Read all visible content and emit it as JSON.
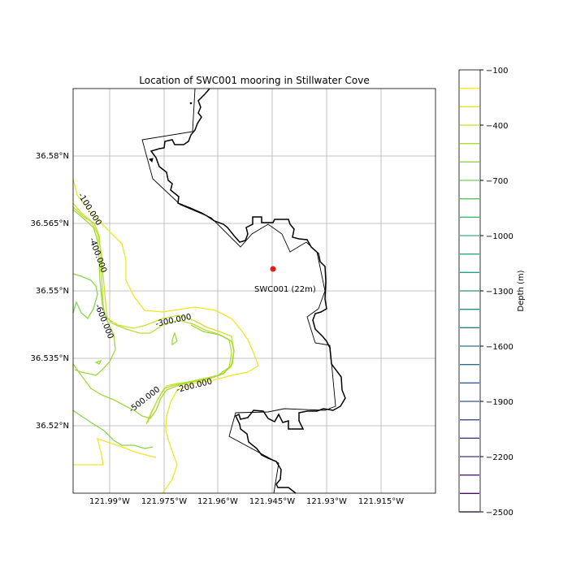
{
  "title": "Location of SWC001 mooring in Stillwater Cove",
  "x_ticks": [
    "121.99°W",
    "121.975°W",
    "121.96°W",
    "121.945°W",
    "121.93°W",
    "121.915°W"
  ],
  "y_ticks": [
    "36.58°N",
    "36.565°N",
    "36.55°N",
    "36.535°N",
    "36.52°N"
  ],
  "mooring": {
    "label": "SWC001 (22m)",
    "color": "#e41a1c"
  },
  "contour_labels": [
    {
      "text": "-100.000"
    },
    {
      "text": "-400.000"
    },
    {
      "text": "-600.000"
    },
    {
      "text": "-300.000"
    },
    {
      "text": "-200.000"
    },
    {
      "text": "-500.000"
    }
  ],
  "colorbar": {
    "label": "Depth (m)",
    "min": -2500,
    "max": -100,
    "tick_labels": [
      "−100",
      "−400",
      "−700",
      "−1000",
      "−1300",
      "−1600",
      "−1900",
      "−2200",
      "−2500"
    ]
  },
  "colors": {
    "land_line": "#000000",
    "grid": "#b0b0b0",
    "contour_shallow": "#f0e624",
    "contour_mid": "#9dd93b",
    "contour_deep": "#440154"
  }
}
